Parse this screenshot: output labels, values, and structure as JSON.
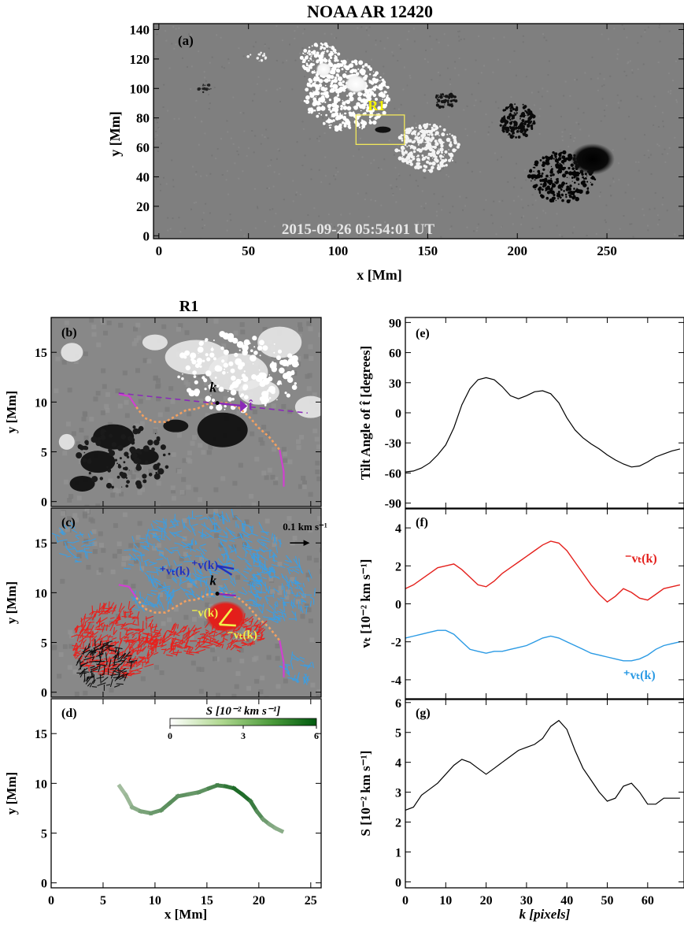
{
  "figure": {
    "title": "NOAA AR 12420",
    "region_title": "R1"
  },
  "panel_a": {
    "label": "(a)",
    "timestamp": "2015-09-26 05:54:01 UT",
    "box_label": "R1",
    "xlabel": "x [Mm]",
    "ylabel": "y [Mm]",
    "xlim": [
      -3,
      293
    ],
    "ylim": [
      -2,
      144
    ],
    "xticks": [
      0,
      50,
      100,
      150,
      200,
      250
    ],
    "yticks": [
      0,
      20,
      40,
      60,
      80,
      100,
      120,
      140
    ],
    "box": {
      "x0": 110,
      "x1": 137,
      "y0": 62,
      "y1": 82
    },
    "colors": {
      "box": "#f2e85c",
      "box_label": "#f2f000",
      "timestamp": "#e6e6e6"
    }
  },
  "panel_b": {
    "label": "(b)",
    "ylabel": "y [Mm]",
    "xlim": [
      0,
      26
    ],
    "ylim": [
      -0.5,
      18.5
    ],
    "yticks": [
      0,
      5,
      10,
      15
    ],
    "k_label": "k",
    "t_label": "t̂",
    "colors": {
      "pil_orange": "#f4a060",
      "pil_magenta": "#d040d0",
      "tangent": "#8a2ab8"
    }
  },
  "panel_c": {
    "label": "(c)",
    "ylabel": "y [Mm]",
    "yticks": [
      0,
      5,
      10,
      15
    ],
    "scale_label": "0.1 km s⁻¹",
    "vplus_label": "⁺v(k)",
    "vtplus_label": "⁺vₜ(k)",
    "vminus_label": "⁻v(k)",
    "vtminus_label": "⁻vₜ(k)",
    "k_label": "k",
    "colors": {
      "red": "#e8201c",
      "blue": "#3a9ee4",
      "yellow": "#f2f04a",
      "darkblue": "#2030c0"
    }
  },
  "panel_d": {
    "label": "(d)",
    "ylabel": "y [Mm]",
    "xlabel": "x [Mm]",
    "xticks": [
      0,
      5,
      10,
      15,
      20,
      25
    ],
    "yticks": [
      0,
      5,
      10,
      15
    ],
    "colorbar": {
      "title": "S [10⁻² km s⁻¹]",
      "ticks": [
        0,
        3,
        6
      ],
      "min": 0,
      "max": 6
    },
    "curve": {
      "x": [
        6.6,
        7.2,
        7.8,
        8.6,
        9.6,
        10.6,
        11.4,
        12.2,
        13.2,
        14.2,
        15.2,
        16.0,
        16.8,
        17.6,
        18.4,
        19.2,
        19.8,
        20.4,
        21.0,
        21.6,
        22.2
      ],
      "y": [
        9.7,
        8.8,
        7.6,
        7.2,
        7.0,
        7.3,
        8.0,
        8.7,
        8.9,
        9.1,
        9.5,
        9.8,
        9.7,
        9.5,
        8.9,
        8.2,
        7.2,
        6.4,
        5.9,
        5.5,
        5.2
      ],
      "s": [
        2.4,
        2.6,
        3.0,
        3.4,
        3.7,
        4.0,
        4.1,
        4.0,
        3.8,
        4.0,
        4.4,
        4.6,
        5.0,
        5.4,
        5.3,
        4.8,
        4.2,
        3.6,
        3.2,
        3.0,
        2.8
      ]
    }
  },
  "panel_e": {
    "label": "(e)",
    "ylabel": "Tilt Angle of t̂ [degrees]",
    "ylim": [
      -95,
      95
    ],
    "yticks": [
      -90,
      -60,
      -30,
      0,
      30,
      60,
      90
    ],
    "k": [
      0,
      2,
      4,
      6,
      8,
      10,
      12,
      14,
      16,
      18,
      20,
      22,
      24,
      26,
      28,
      30,
      32,
      34,
      36,
      38,
      40,
      42,
      44,
      46,
      48,
      50,
      52,
      54,
      56,
      58,
      60,
      62,
      64,
      66,
      68
    ],
    "values": [
      -59,
      -58,
      -55,
      -50,
      -42,
      -32,
      -15,
      8,
      24,
      33,
      35,
      33,
      26,
      17,
      14,
      17,
      21,
      22,
      19,
      10,
      -5,
      -17,
      -25,
      -31,
      -36,
      -42,
      -47,
      -51,
      -54,
      -53,
      -49,
      -44,
      -41,
      -38,
      -36
    ]
  },
  "panel_f": {
    "label": "(f)",
    "ylabel": "vₜ [10⁻² km s⁻¹]",
    "ylim": [
      -5,
      5
    ],
    "yticks": [
      -4,
      -2,
      0,
      2,
      4
    ],
    "series_minus_label": "⁻vₜ(k)",
    "series_plus_label": "⁺vₜ(k)",
    "k": [
      0,
      2,
      4,
      6,
      8,
      10,
      12,
      14,
      16,
      18,
      20,
      22,
      24,
      26,
      28,
      30,
      32,
      34,
      36,
      38,
      40,
      42,
      44,
      46,
      48,
      50,
      52,
      54,
      56,
      58,
      60,
      62,
      64,
      66,
      68
    ],
    "minus_values": [
      0.8,
      1.0,
      1.3,
      1.6,
      1.9,
      2.0,
      2.1,
      1.8,
      1.4,
      1.0,
      0.9,
      1.2,
      1.6,
      1.9,
      2.2,
      2.5,
      2.8,
      3.1,
      3.3,
      3.2,
      2.8,
      2.2,
      1.6,
      1.0,
      0.5,
      0.1,
      0.4,
      0.8,
      0.6,
      0.3,
      0.2,
      0.5,
      0.8,
      0.9,
      1.0
    ],
    "plus_values": [
      -1.8,
      -1.7,
      -1.6,
      -1.5,
      -1.4,
      -1.4,
      -1.6,
      -2.0,
      -2.4,
      -2.5,
      -2.6,
      -2.5,
      -2.5,
      -2.4,
      -2.3,
      -2.2,
      -2.0,
      -1.8,
      -1.7,
      -1.8,
      -2.0,
      -2.2,
      -2.4,
      -2.6,
      -2.7,
      -2.8,
      -2.9,
      -3.0,
      -3.0,
      -2.9,
      -2.7,
      -2.4,
      -2.2,
      -2.1,
      -2.0
    ],
    "colors": {
      "minus": "#e4201c",
      "plus": "#2a9ae4"
    }
  },
  "panel_g": {
    "label": "(g)",
    "ylabel": "S [10⁻² km s⁻¹]",
    "xlabel": "k [pixels]",
    "ylim": [
      -0.2,
      6.1
    ],
    "yticks": [
      0,
      1,
      2,
      3,
      4,
      5,
      6
    ],
    "xlim": [
      0,
      69
    ],
    "xticks": [
      0,
      10,
      20,
      30,
      40,
      50,
      60
    ],
    "k": [
      0,
      2,
      4,
      6,
      8,
      10,
      12,
      14,
      16,
      18,
      20,
      22,
      24,
      26,
      28,
      30,
      32,
      34,
      36,
      38,
      40,
      42,
      44,
      46,
      48,
      50,
      52,
      54,
      56,
      58,
      60,
      62,
      64,
      66,
      68
    ],
    "values": [
      2.4,
      2.5,
      2.9,
      3.1,
      3.3,
      3.6,
      3.9,
      4.1,
      4.0,
      3.8,
      3.6,
      3.8,
      4.0,
      4.2,
      4.4,
      4.5,
      4.6,
      4.8,
      5.2,
      5.4,
      5.1,
      4.4,
      3.8,
      3.4,
      3.0,
      2.7,
      2.8,
      3.2,
      3.3,
      3.0,
      2.6,
      2.6,
      2.8,
      2.8,
      2.8
    ]
  }
}
